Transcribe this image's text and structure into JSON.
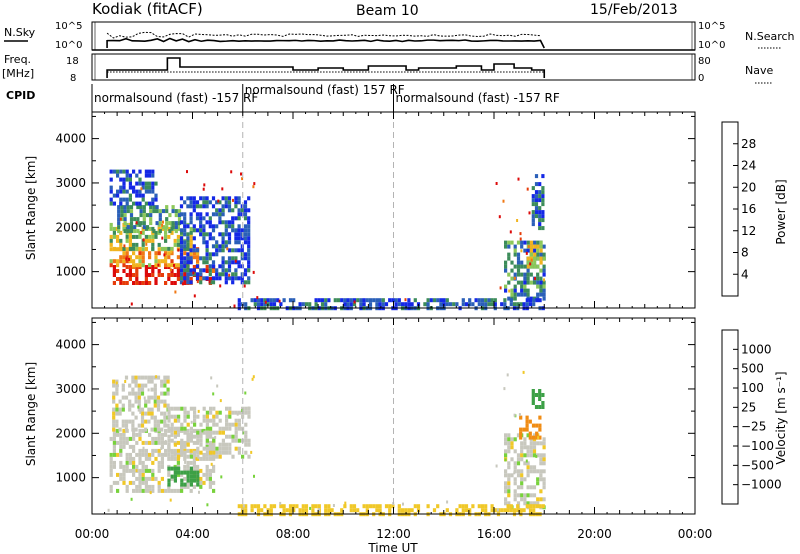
{
  "header": {
    "station": "Kodiak (fitACF)",
    "beam": "Beam 10",
    "date": "15/Feb/2013"
  },
  "panels": {
    "nsky_label": "N.Sky",
    "nsearch_label": "N.Search",
    "nsky_ticks": [
      "10^5",
      "10^0"
    ],
    "nsky_right_ticks": [
      "10^5",
      "10^0"
    ],
    "freq_label": "Freq.",
    "freq_unit": "[MHz]",
    "freq_ticks": [
      "18",
      "8"
    ],
    "nave_ticks": [
      "80",
      "0"
    ],
    "nave_label": "Nave",
    "cpid_label": "CPID",
    "cpid_segments": [
      {
        "text": "normalsound (fast) -157 RF",
        "start_h": 0.0,
        "end_h": 6.0,
        "row": 1
      },
      {
        "text": "normalsound (fast) 157 RF",
        "start_h": 6.0,
        "end_h": 12.0,
        "row": 0
      },
      {
        "text": "normalsound (fast) -157 RF",
        "start_h": 12.0,
        "end_h": 18.0,
        "row": 1
      }
    ]
  },
  "axes": {
    "ylabel": "Slant Range [km]",
    "xlabel": "Time UT",
    "xticks": [
      "00:00",
      "04:00",
      "08:00",
      "12:00",
      "16:00",
      "20:00",
      "00:00"
    ],
    "yticks": [
      "1000",
      "2000",
      "3000",
      "4000"
    ]
  },
  "colorbars": {
    "power": {
      "label": "Power [dB]",
      "ticks": [
        "4",
        "8",
        "12",
        "16",
        "20",
        "24",
        "28"
      ],
      "colors": [
        "#1428e6",
        "#2a5fb8",
        "#3c8c5a",
        "#8cc85a",
        "#f0b41e",
        "#f07814",
        "#e63c0a",
        "#dc0a0a"
      ]
    },
    "velocity": {
      "label": "Velocity [m s⁻¹]",
      "ticks": [
        "1000",
        "500",
        "100",
        "25",
        "−25",
        "−100",
        "−500",
        "−1000"
      ],
      "colors": [
        "#1e3cc8",
        "#3c78b4",
        "#3ca046",
        "#78d23c",
        "#c8c8be",
        "#f0c828",
        "#f08c14",
        "#f0501e",
        "#e61414"
      ]
    }
  },
  "chart_data": [
    {
      "type": "heatmap",
      "title": "Power",
      "xlabel": "Time UT",
      "ylabel": "Slant Range [km]",
      "xlim": [
        0,
        24
      ],
      "ylim": [
        180,
        4600
      ],
      "colorbar": {
        "label": "Power [dB]",
        "range": [
          0,
          32
        ]
      },
      "regions": [
        {
          "t0": 0.7,
          "t1": 4.8,
          "r0": 700,
          "r1": 1150,
          "value": 28
        },
        {
          "t0": 0.7,
          "t1": 4.2,
          "r0": 1150,
          "r1": 1550,
          "value": 20
        },
        {
          "t0": 0.7,
          "t1": 4.0,
          "r0": 1500,
          "r1": 2100,
          "value": 14
        },
        {
          "t0": 1.0,
          "t1": 3.5,
          "r0": 1900,
          "r1": 2500,
          "value": 10
        },
        {
          "t0": 0.7,
          "t1": 2.5,
          "r0": 2500,
          "r1": 3300,
          "value": 5
        },
        {
          "t0": 3.5,
          "t1": 6.3,
          "r0": 800,
          "r1": 2700,
          "value": 5
        },
        {
          "t0": 16.4,
          "t1": 18.0,
          "r0": 400,
          "r1": 1700,
          "value": 8
        },
        {
          "t0": 17.3,
          "t1": 18.0,
          "r0": 1100,
          "r1": 1700,
          "value": 16
        },
        {
          "t0": 17.5,
          "t1": 18.0,
          "r0": 2000,
          "r1": 3200,
          "value": 5
        },
        {
          "t0": 5.8,
          "t1": 18.0,
          "r0": 180,
          "r1": 400,
          "value": 6
        }
      ],
      "marker_times": [
        6.0,
        12.0
      ]
    },
    {
      "type": "heatmap",
      "title": "Velocity",
      "xlabel": "Time UT",
      "ylabel": "Slant Range [km]",
      "xlim": [
        0,
        24
      ],
      "ylim": [
        180,
        4600
      ],
      "colorbar": {
        "label": "Velocity [m s⁻¹]",
        "range": [
          -1000,
          1000
        ]
      },
      "regions": [
        {
          "t0": 0.7,
          "t1": 4.8,
          "r0": 700,
          "r1": 2100,
          "value": 0
        },
        {
          "t0": 0.8,
          "t1": 3.0,
          "r0": 2100,
          "r1": 3300,
          "value": 0
        },
        {
          "t0": 3.0,
          "t1": 6.2,
          "r0": 1500,
          "r1": 2600,
          "value": 0
        },
        {
          "t0": 3.0,
          "t1": 4.2,
          "r0": 850,
          "r1": 1250,
          "value": 150
        },
        {
          "t0": 16.4,
          "t1": 18.0,
          "r0": 350,
          "r1": 2000,
          "value": 0
        },
        {
          "t0": 17.5,
          "t1": 18.0,
          "r0": 2600,
          "r1": 3000,
          "value": 150
        },
        {
          "t0": 17.0,
          "t1": 17.8,
          "r0": 1900,
          "r1": 2400,
          "value": -300
        },
        {
          "t0": 5.8,
          "t1": 18.0,
          "r0": 180,
          "r1": 400,
          "value": -60
        }
      ],
      "marker_times": [
        6.0,
        12.0
      ]
    }
  ]
}
